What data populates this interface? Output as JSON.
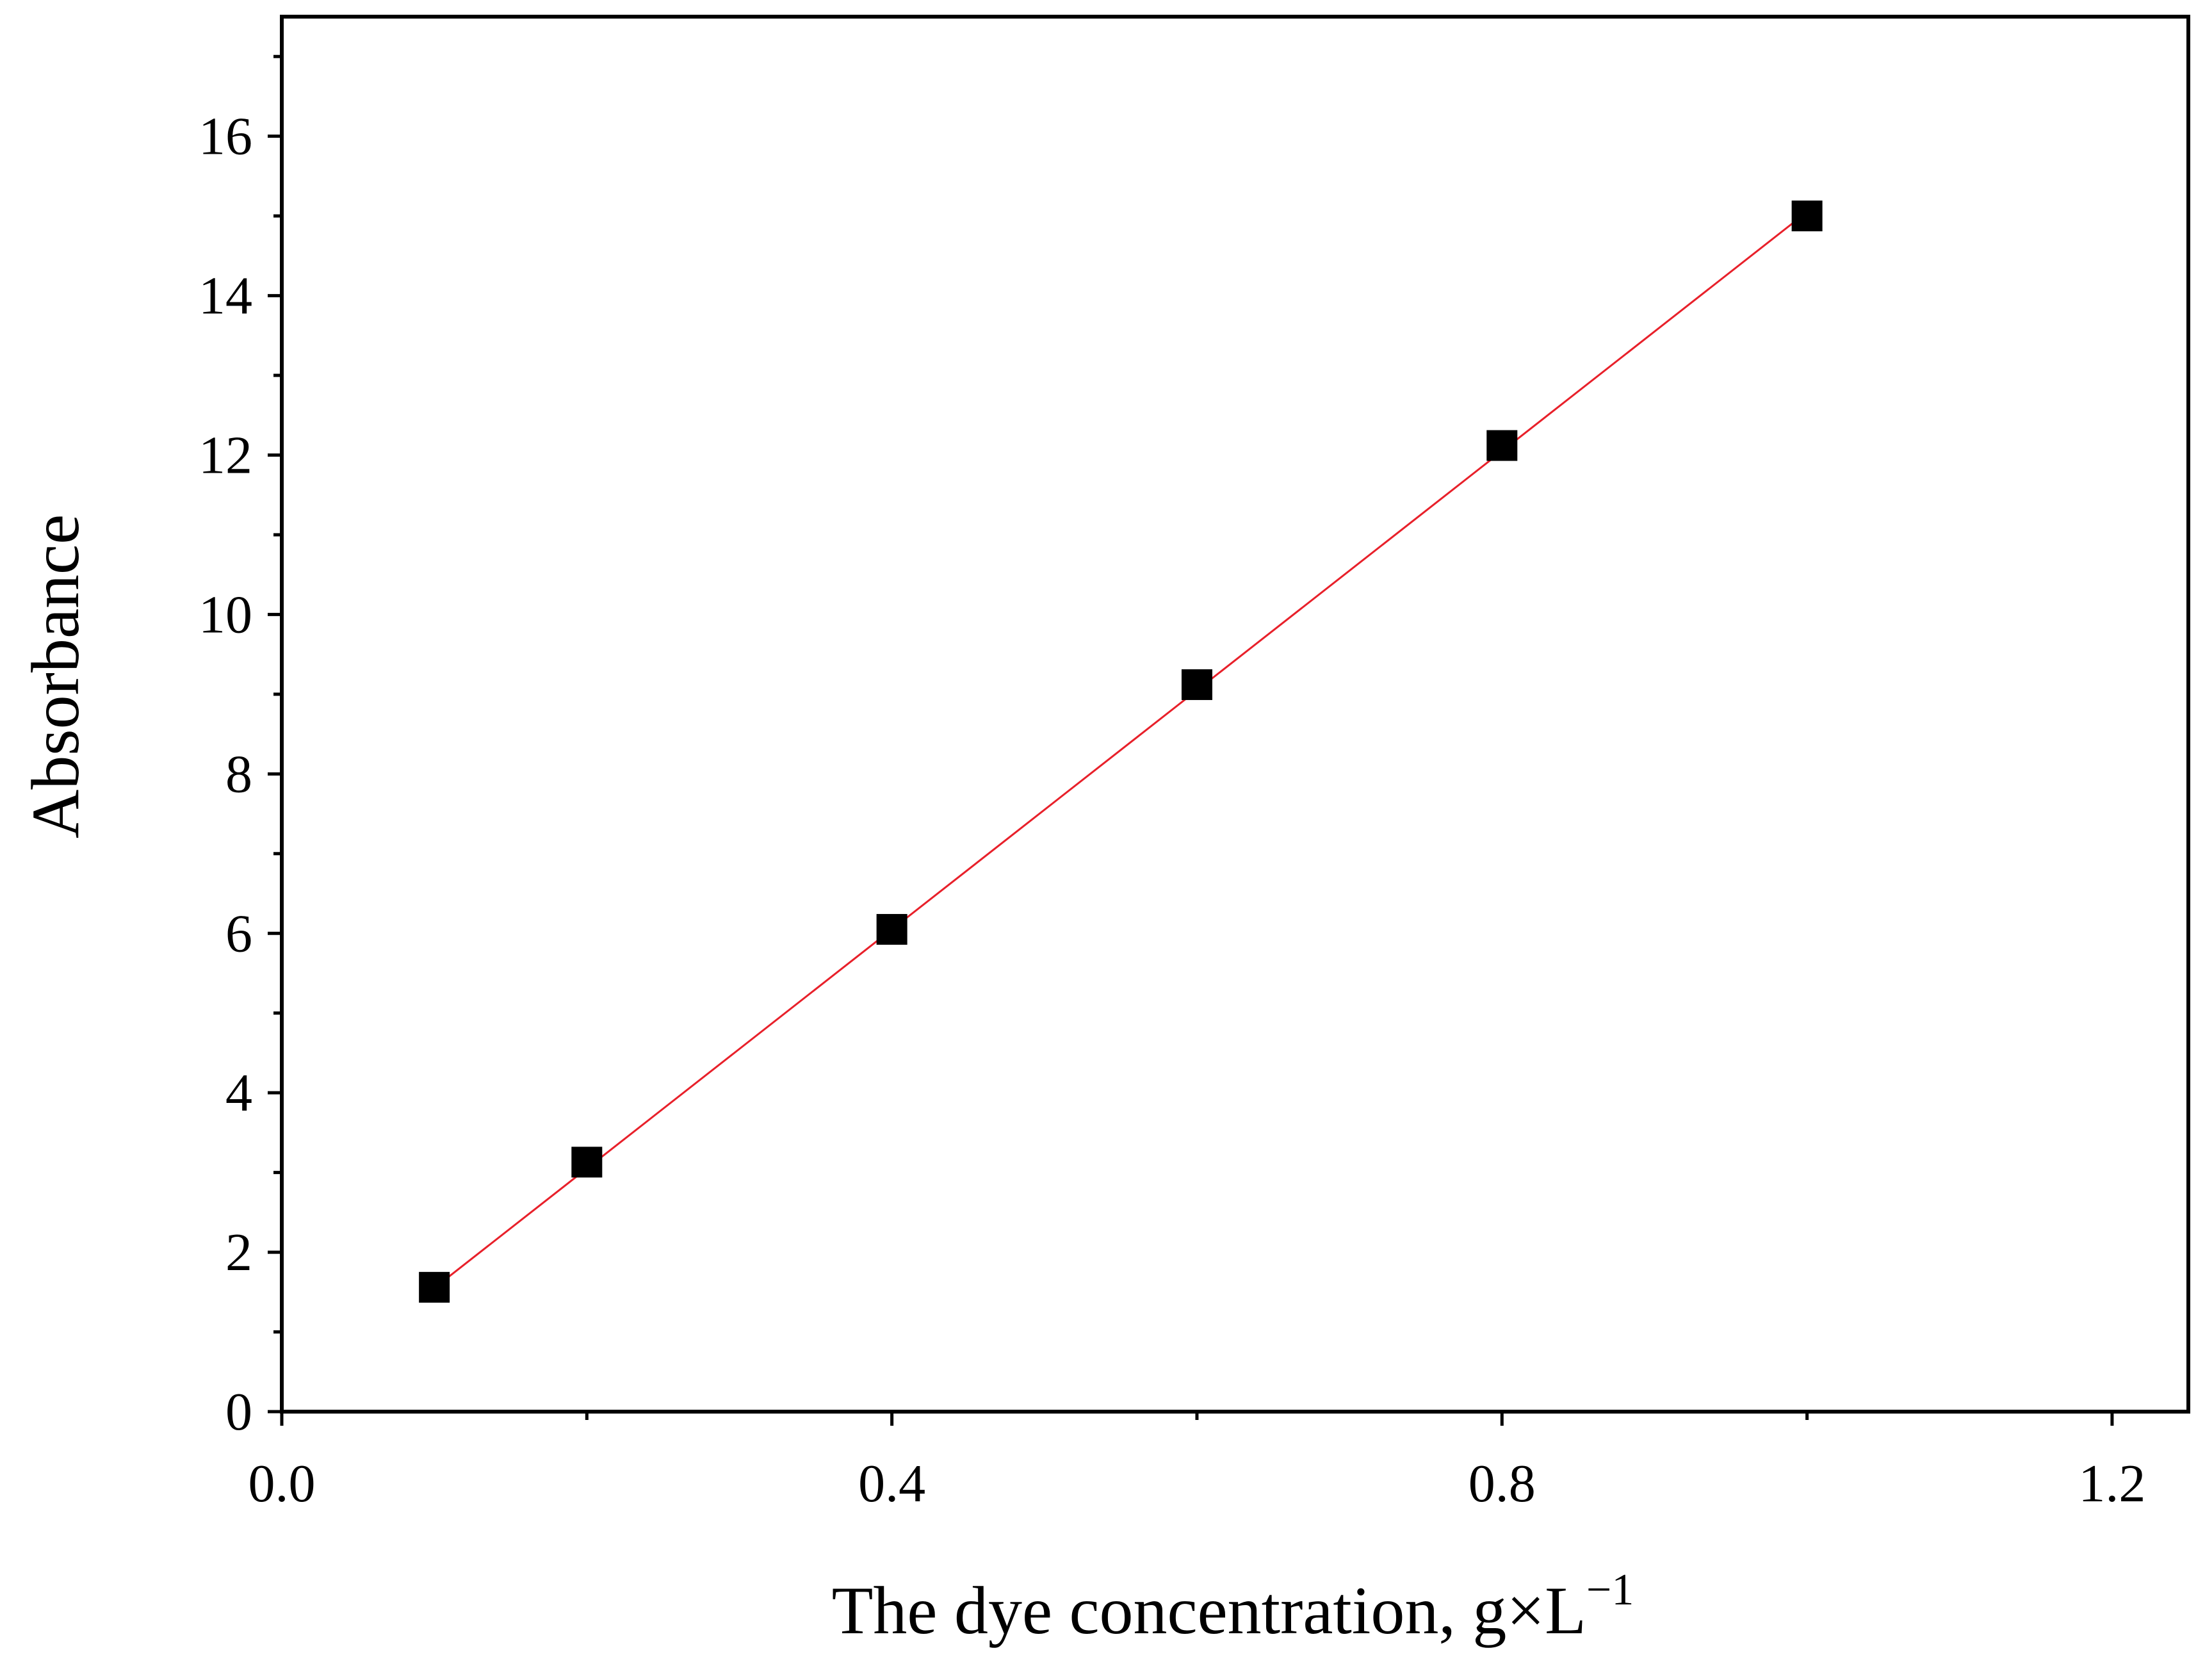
{
  "chart_data": {
    "type": "scatter",
    "xlabel": "The dye concentration, g×L",
    "xlabel_superscript": "−1",
    "ylabel": "Absorbance",
    "xlim": [
      0,
      1.25
    ],
    "ylim": [
      0,
      17.5
    ],
    "xticks": [
      {
        "value": 0,
        "label": "0.0"
      },
      0.4,
      0.8,
      1.2
    ],
    "xminorticks": [
      0.2,
      0.6,
      1.0
    ],
    "yticks": [
      0,
      2,
      4,
      6,
      8,
      10,
      12,
      14,
      16
    ],
    "yminorticks": [
      1,
      3,
      5,
      7,
      9,
      11,
      13,
      15,
      17
    ],
    "grid": false,
    "series": [
      {
        "mode": "markers",
        "marker": "square",
        "color": "#000000",
        "x": [
          0.1,
          0.2,
          0.4,
          0.6,
          0.8,
          1.0
        ],
        "values": [
          1.56,
          3.13,
          6.05,
          9.12,
          12.12,
          15.0
        ]
      },
      {
        "mode": "line",
        "color": "#e8202a",
        "x": [
          0.1,
          1.0
        ],
        "values": [
          1.55,
          15.05
        ]
      }
    ]
  }
}
